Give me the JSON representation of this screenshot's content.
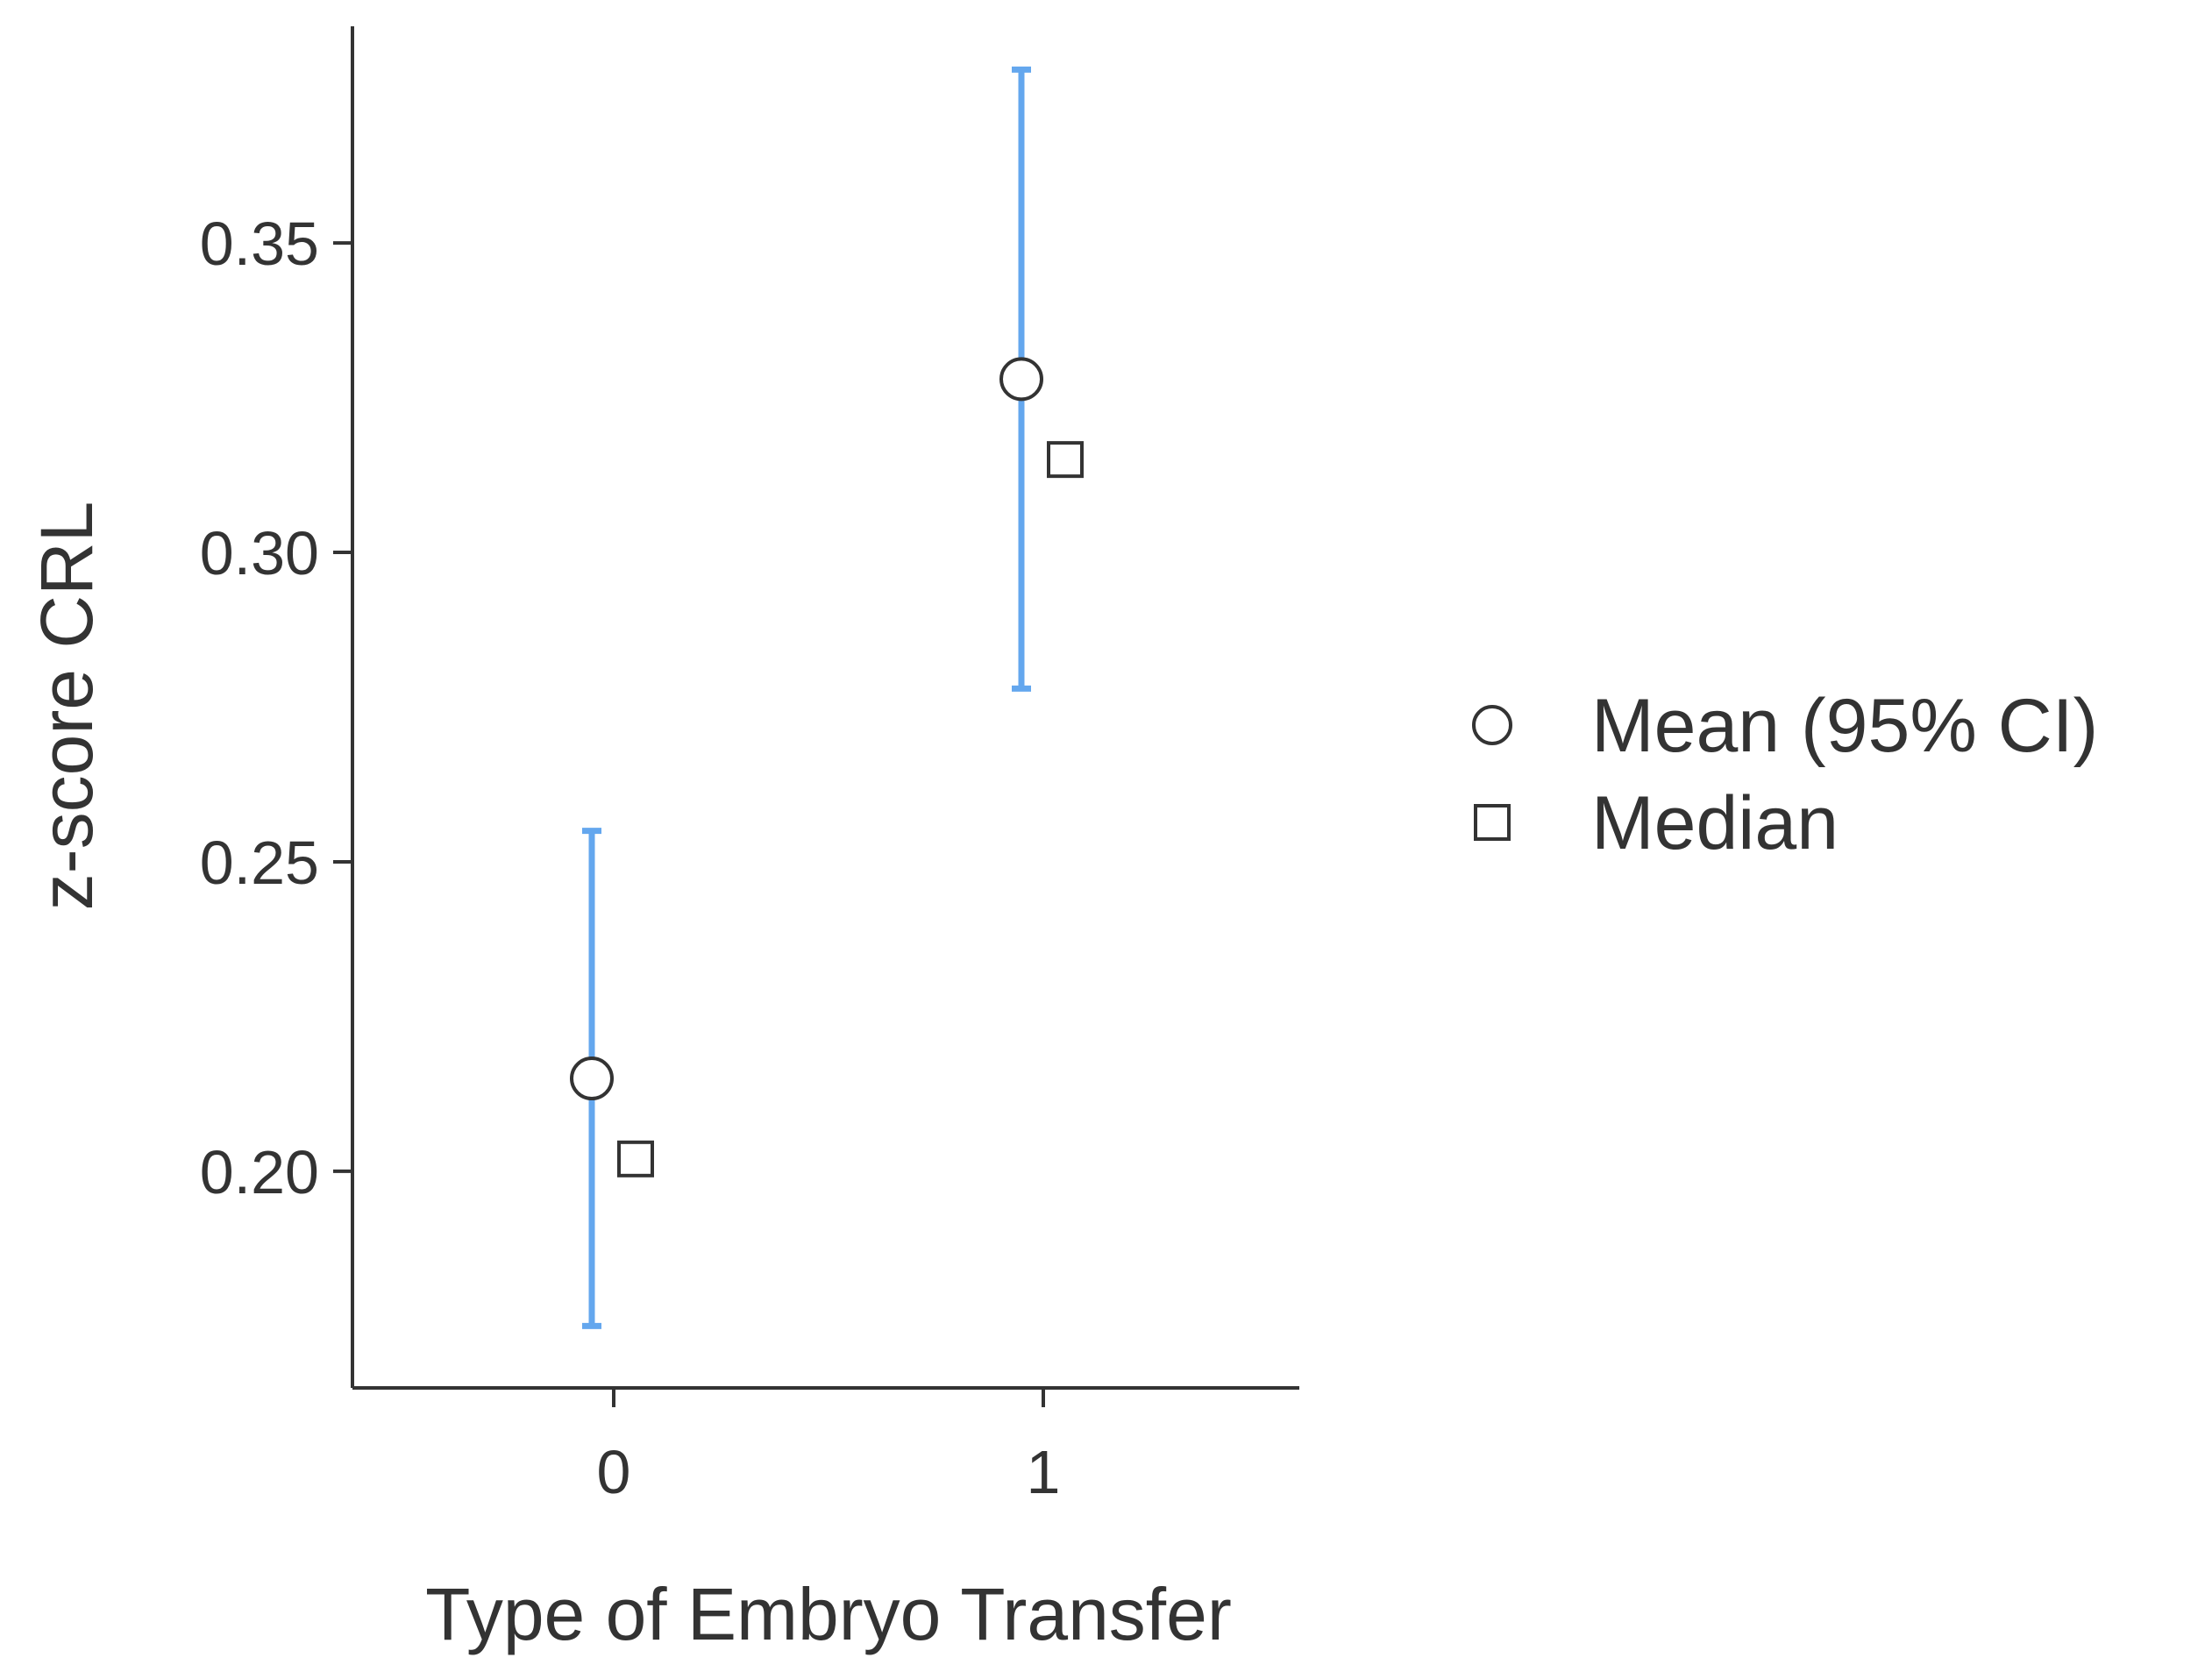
{
  "chart_data": {
    "type": "scatter",
    "title": "",
    "xlabel": "Type of Embryo Transfer",
    "ylabel": "z-score CRL",
    "categories": [
      "0",
      "1"
    ],
    "ylim": [
      0.165,
      0.385
    ],
    "yticks": [
      0.2,
      0.25,
      0.3,
      0.35
    ],
    "ytick_labels": [
      "0.20",
      "0.25",
      "0.30",
      "0.35"
    ],
    "grid": false,
    "legend_position": "right",
    "series": [
      {
        "name": "Mean (95% CI)",
        "marker": "circle",
        "values": [
          0.215,
          0.328
        ],
        "ci_lower": [
          0.175,
          0.278
        ],
        "ci_upper": [
          0.255,
          0.378
        ]
      },
      {
        "name": "Median",
        "marker": "square",
        "values": [
          0.202,
          0.315
        ]
      }
    ],
    "colors": {
      "errorbar": "#64A7EE",
      "axis": "#333333",
      "marker_stroke": "#333333",
      "marker_fill": "#ffffff"
    }
  }
}
